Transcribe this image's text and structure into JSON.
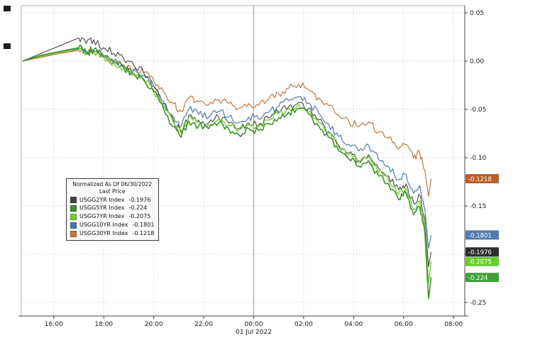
{
  "page": {
    "background": "#ffffff"
  },
  "legend": {
    "title_line1": "Normalized As Of 06/30/2022",
    "title_line2": "Last Price",
    "items": [
      {
        "label": "USGG2YR Index",
        "value": "-0.1976",
        "color": "#454545"
      },
      {
        "label": "USGG5YR Index",
        "value": "-0.224",
        "color": "#3d9128"
      },
      {
        "label": "USGG7YR Index",
        "value": "-0.2075",
        "color": "#74cf33"
      },
      {
        "label": "USGG10YR Index",
        "value": "-0.1801",
        "color": "#4c7cab"
      },
      {
        "label": "USGG30YR Index",
        "value": "-0.1218",
        "color": "#c07840"
      }
    ]
  },
  "chart_data": {
    "type": "line",
    "title": "Normalized As Of 06/30/2022 Last Price",
    "x_axis": {
      "ticks": [
        "16:00",
        "18:00",
        "20:00",
        "22:00",
        "00:00",
        "02:00",
        "04:00",
        "06:00",
        "08:00"
      ],
      "tick_hours": [
        16,
        18,
        20,
        22,
        24,
        26,
        28,
        30,
        32
      ],
      "date_label": "01 Jul 2022",
      "date_under_tick": "00:00",
      "midnight_hour": 24
    },
    "y_axis": {
      "ticks": [
        0.05,
        0.0,
        -0.05,
        -0.1,
        -0.15,
        -0.2,
        -0.25
      ],
      "tick_labels": [
        "0.05",
        "0.00",
        "-0.05",
        "-0.10",
        "-0.15",
        "-0.20",
        "-0.25"
      ],
      "range": [
        -0.262,
        0.062
      ],
      "grid": "dotted"
    },
    "x_hours": [
      14.75,
      15.5,
      16.25,
      17.0,
      17.3,
      17.6,
      18.0,
      18.4,
      18.8,
      19.2,
      19.6,
      20.0,
      20.4,
      20.8,
      21.1,
      21.4,
      21.8,
      22.2,
      22.6,
      23.0,
      23.4,
      23.8,
      24.2,
      24.6,
      25.0,
      25.4,
      25.8,
      26.2,
      26.6,
      27.0,
      27.4,
      27.8,
      28.2,
      28.6,
      29.0,
      29.4,
      29.8,
      30.1,
      30.4,
      30.65,
      30.85,
      31.0,
      31.1
    ],
    "series": [
      {
        "id": "usgg2yr",
        "name": "USGG2YR Index",
        "last": -0.1976,
        "last_label": "-0.1976",
        "color": "#454545",
        "badge_color": "#2e2e2e",
        "width": 1.1,
        "values": [
          0.0,
          0.008,
          0.016,
          0.024,
          0.018,
          0.022,
          0.014,
          0.008,
          0.002,
          -0.004,
          -0.012,
          -0.026,
          -0.044,
          -0.062,
          -0.073,
          -0.056,
          -0.061,
          -0.064,
          -0.058,
          -0.064,
          -0.07,
          -0.064,
          -0.066,
          -0.059,
          -0.053,
          -0.047,
          -0.043,
          -0.049,
          -0.061,
          -0.073,
          -0.087,
          -0.095,
          -0.103,
          -0.097,
          -0.111,
          -0.119,
          -0.133,
          -0.127,
          -0.147,
          -0.139,
          -0.163,
          -0.213,
          -0.1976
        ]
      },
      {
        "id": "usgg5yr",
        "name": "USGG5YR Index",
        "last": -0.224,
        "last_label": "-0.224",
        "color": "#3d9128",
        "badge_color": "#44a13d",
        "width": 1.6,
        "values": [
          0.0,
          0.006,
          0.01,
          0.014,
          0.009,
          0.012,
          0.005,
          -0.001,
          -0.007,
          -0.013,
          -0.019,
          -0.032,
          -0.05,
          -0.068,
          -0.079,
          -0.062,
          -0.067,
          -0.07,
          -0.064,
          -0.07,
          -0.076,
          -0.07,
          -0.072,
          -0.065,
          -0.059,
          -0.053,
          -0.049,
          -0.055,
          -0.067,
          -0.079,
          -0.093,
          -0.101,
          -0.109,
          -0.103,
          -0.119,
          -0.127,
          -0.143,
          -0.137,
          -0.159,
          -0.151,
          -0.177,
          -0.246,
          -0.224
        ]
      },
      {
        "id": "usgg7yr",
        "name": "USGG7YR Index",
        "last": -0.2075,
        "last_label": "-0.2075",
        "color": "#74cf33",
        "badge_color": "#69cd30",
        "width": 1.4,
        "values": [
          0.0,
          0.005,
          0.009,
          0.012,
          0.007,
          0.01,
          0.004,
          -0.002,
          -0.008,
          -0.014,
          -0.02,
          -0.03,
          -0.047,
          -0.064,
          -0.075,
          -0.058,
          -0.063,
          -0.066,
          -0.06,
          -0.066,
          -0.072,
          -0.066,
          -0.068,
          -0.061,
          -0.055,
          -0.049,
          -0.045,
          -0.051,
          -0.063,
          -0.075,
          -0.089,
          -0.097,
          -0.105,
          -0.099,
          -0.115,
          -0.123,
          -0.138,
          -0.132,
          -0.153,
          -0.145,
          -0.17,
          -0.23,
          -0.2075
        ]
      },
      {
        "id": "usgg10yr",
        "name": "USGG10YR Index",
        "last": -0.1801,
        "last_label": "-0.1801",
        "color": "#4c7cab",
        "badge_color": "#4f7cab",
        "width": 1.2,
        "values": [
          0.0,
          0.005,
          0.009,
          0.013,
          0.008,
          0.011,
          0.005,
          0.0,
          -0.005,
          -0.01,
          -0.015,
          -0.026,
          -0.042,
          -0.058,
          -0.067,
          -0.05,
          -0.055,
          -0.058,
          -0.052,
          -0.058,
          -0.064,
          -0.058,
          -0.06,
          -0.053,
          -0.047,
          -0.041,
          -0.037,
          -0.043,
          -0.054,
          -0.065,
          -0.078,
          -0.086,
          -0.093,
          -0.087,
          -0.102,
          -0.109,
          -0.123,
          -0.117,
          -0.137,
          -0.129,
          -0.153,
          -0.194,
          -0.1801
        ]
      },
      {
        "id": "usgg30yr",
        "name": "USGG30YR Index",
        "last": -0.1218,
        "last_label": "-0.1218",
        "color": "#c07840",
        "badge_color": "#b85f2b",
        "width": 1.2,
        "values": [
          0.0,
          0.004,
          0.008,
          0.011,
          0.007,
          0.009,
          0.004,
          0.0,
          -0.004,
          -0.008,
          -0.012,
          -0.02,
          -0.032,
          -0.044,
          -0.052,
          -0.038,
          -0.042,
          -0.045,
          -0.04,
          -0.044,
          -0.049,
          -0.044,
          -0.046,
          -0.04,
          -0.034,
          -0.028,
          -0.024,
          -0.03,
          -0.038,
          -0.046,
          -0.056,
          -0.062,
          -0.068,
          -0.063,
          -0.074,
          -0.08,
          -0.091,
          -0.086,
          -0.101,
          -0.095,
          -0.113,
          -0.14,
          -0.1218
        ]
      }
    ],
    "legend_position": "left-middle"
  }
}
